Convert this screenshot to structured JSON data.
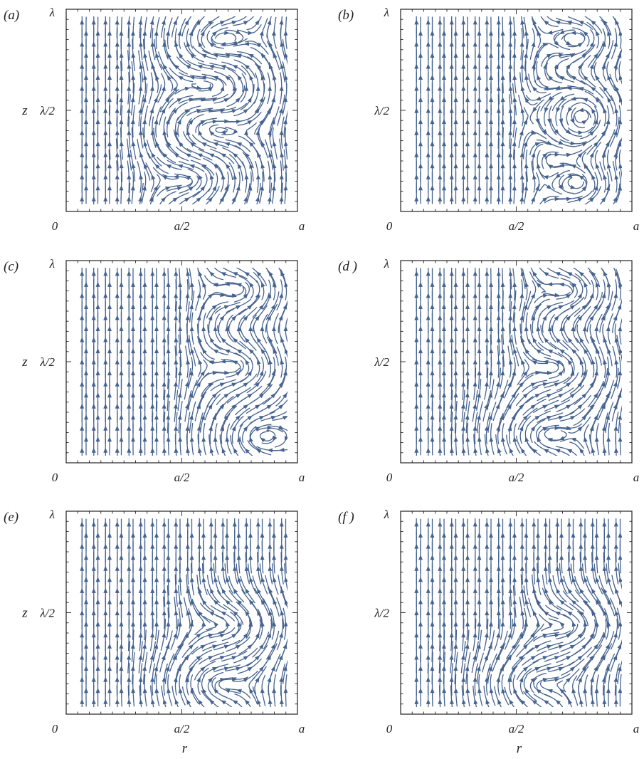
{
  "chart_data": [
    {
      "type": "streamline",
      "panel_label": "(a)",
      "xlabel": "",
      "ylabel": "z",
      "xticks": [
        "0",
        "a/2",
        "a"
      ],
      "yticks": [
        "λ/2",
        "λ"
      ],
      "cells": [
        {
          "r": 0.6,
          "z": 0.87,
          "rot": -1
        },
        {
          "r": 0.7,
          "z": 0.62,
          "rot": 1
        },
        {
          "r": 0.58,
          "z": 0.4,
          "rot": -1
        },
        {
          "r": 0.62,
          "z": 0.14,
          "rot": 1
        }
      ]
    },
    {
      "type": "streamline",
      "panel_label": "(b)",
      "xlabel": "",
      "ylabel": "",
      "xticks": [
        "0",
        "a/2",
        "a"
      ],
      "yticks": [
        "λ/2",
        "λ"
      ],
      "cells": [
        {
          "r": 0.87,
          "z": 0.88,
          "rot": 1
        },
        {
          "r": 0.86,
          "z": 0.53,
          "rot": 1
        },
        {
          "r": 0.86,
          "z": 0.4,
          "rot": 1
        },
        {
          "r": 0.87,
          "z": 0.1,
          "rot": 1
        }
      ]
    },
    {
      "type": "streamline",
      "panel_label": "(c)",
      "xlabel": "",
      "ylabel": "z",
      "xticks": [
        "0",
        "a/2",
        "a"
      ],
      "yticks": [
        "λ/2",
        "λ"
      ],
      "cells": [
        {
          "r": 0.86,
          "z": 0.88,
          "rot": 1
        },
        {
          "r": 0.84,
          "z": 0.47,
          "rot": 1
        },
        {
          "r": 0.8,
          "z": 0.1,
          "rot": -1
        }
      ]
    },
    {
      "type": "streamline",
      "panel_label": "(d )",
      "xlabel": "",
      "ylabel": "",
      "xticks": [
        "0",
        "a/2",
        "a"
      ],
      "yticks": [
        "λ/2",
        "λ"
      ],
      "cells": [
        {
          "r": 0.83,
          "z": 0.88,
          "rot": 1
        },
        {
          "r": 0.78,
          "z": 0.46,
          "rot": 1
        },
        {
          "r": 0.55,
          "z": 0.11,
          "rot": -1
        }
      ]
    },
    {
      "type": "streamline",
      "panel_label": "(e)",
      "xlabel": "r",
      "ylabel": "z",
      "xticks": [
        "0",
        "a/2",
        "a"
      ],
      "yticks": [
        "λ/2",
        "λ"
      ],
      "cells": [
        {
          "r": 0.8,
          "z": 0.43,
          "rot": 1
        },
        {
          "r": 0.58,
          "z": 0.12,
          "rot": -1
        }
      ]
    },
    {
      "type": "streamline",
      "panel_label": "(f )",
      "xlabel": "r",
      "ylabel": "",
      "xticks": [
        "0",
        "a/2",
        "a"
      ],
      "yticks": [
        "λ/2",
        "λ"
      ],
      "cells": [
        {
          "r": 0.83,
          "z": 0.43,
          "rot": 1
        },
        {
          "r": 0.5,
          "z": 0.12,
          "rot": -1
        }
      ]
    }
  ],
  "colors": {
    "stream": "#46638f",
    "axis": "#222222"
  }
}
